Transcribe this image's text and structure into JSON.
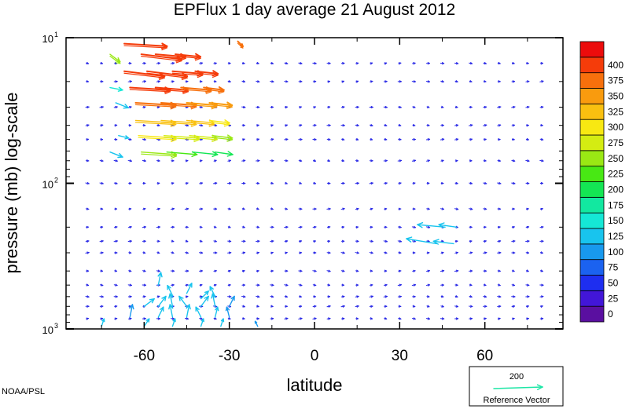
{
  "chart_data": {
    "type": "vector-field",
    "title": "EPFlux  1 day average  21 August    2012",
    "xlabel": "latitude",
    "ylabel": "pressure (mb)  log-scale",
    "x_ticks": [
      -60,
      -30,
      0,
      30,
      60
    ],
    "xlim": [
      -87.5,
      87.5
    ],
    "y_scale": "log",
    "ylim": [
      1000,
      10
    ],
    "y_ticks": [
      {
        "value": 10,
        "base": "10",
        "exp": "1"
      },
      {
        "value": 100,
        "base": "10",
        "exp": "2"
      },
      {
        "value": 1000,
        "base": "10",
        "exp": "3"
      }
    ],
    "colorbar": {
      "levels": [
        "0",
        "25",
        "50",
        "75",
        "100",
        "125",
        "150",
        "175",
        "200",
        "225",
        "250",
        "275",
        "300",
        "325",
        "350",
        "375",
        "400"
      ],
      "colors": [
        "#5a0fa0",
        "#4216d8",
        "#1e2ef0",
        "#1b62f0",
        "#1899ee",
        "#18c4ee",
        "#15e8d6",
        "#12e8a0",
        "#14e654",
        "#48e814",
        "#9ae814",
        "#d4ec12",
        "#f8e812",
        "#f9c010",
        "#f99b0e",
        "#f7700c",
        "#f53c0a",
        "#ec0c0c"
      ]
    },
    "reference_vector": {
      "value": "200",
      "label": "Reference Vector",
      "color": "#1ee6a6"
    },
    "vectors": [
      {
        "lon": -67,
        "p": 11,
        "dx": 17,
        "dy": 1,
        "mag": 420
      },
      {
        "lon": -61,
        "p": 13,
        "dx": 16,
        "dy": 2,
        "mag": 410
      },
      {
        "lon": -56,
        "p": 13,
        "dx": 12,
        "dy": 1,
        "mag": 405
      },
      {
        "lon": -49,
        "p": 13,
        "dx": 10,
        "dy": 1,
        "mag": 400
      },
      {
        "lon": -67,
        "p": 17,
        "dx": 16,
        "dy": 2,
        "mag": 415
      },
      {
        "lon": -59,
        "p": 17,
        "dx": 16,
        "dy": 2,
        "mag": 410
      },
      {
        "lon": -50,
        "p": 17,
        "dx": 12,
        "dy": 1,
        "mag": 405
      },
      {
        "lon": -42,
        "p": 17,
        "dx": 9,
        "dy": 1,
        "mag": 400
      },
      {
        "lon": -65,
        "p": 22,
        "dx": 16,
        "dy": 1,
        "mag": 405
      },
      {
        "lon": -56,
        "p": 22,
        "dx": 13,
        "dy": 1,
        "mag": 400
      },
      {
        "lon": -47,
        "p": 22,
        "dx": 12,
        "dy": 1,
        "mag": 395
      },
      {
        "lon": -39,
        "p": 22,
        "dx": 8,
        "dy": 1,
        "mag": 390
      },
      {
        "lon": -63,
        "p": 28,
        "dx": 16,
        "dy": 1,
        "mag": 390
      },
      {
        "lon": -54,
        "p": 28,
        "dx": 14,
        "dy": 1,
        "mag": 380
      },
      {
        "lon": -45,
        "p": 28,
        "dx": 12,
        "dy": 1,
        "mag": 370
      },
      {
        "lon": -37,
        "p": 28,
        "dx": 9,
        "dy": 1,
        "mag": 360
      },
      {
        "lon": -63,
        "p": 37,
        "dx": 16,
        "dy": 1,
        "mag": 340
      },
      {
        "lon": -54,
        "p": 37,
        "dx": 14,
        "dy": 1,
        "mag": 335
      },
      {
        "lon": -45,
        "p": 37,
        "dx": 11,
        "dy": 1,
        "mag": 325
      },
      {
        "lon": -37,
        "p": 37,
        "dx": 8,
        "dy": 1,
        "mag": 310
      },
      {
        "lon": -62,
        "p": 47,
        "dx": 15,
        "dy": 1,
        "mag": 300
      },
      {
        "lon": -53,
        "p": 47,
        "dx": 14,
        "dy": 1,
        "mag": 290
      },
      {
        "lon": -44,
        "p": 47,
        "dx": 11,
        "dy": 1,
        "mag": 275
      },
      {
        "lon": -36,
        "p": 47,
        "dx": 8,
        "dy": 1,
        "mag": 255
      },
      {
        "lon": -61,
        "p": 61,
        "dx": 14,
        "dy": 1,
        "mag": 260
      },
      {
        "lon": -52,
        "p": 61,
        "dx": 12,
        "dy": 1,
        "mag": 240
      },
      {
        "lon": -43,
        "p": 61,
        "dx": 10,
        "dy": 1,
        "mag": 220
      },
      {
        "lon": -35,
        "p": 61,
        "dx": 7,
        "dy": 1,
        "mag": 200
      },
      {
        "lon": -72,
        "p": 13,
        "dx": 4,
        "dy": 3,
        "mag": 250
      },
      {
        "lon": -72,
        "p": 22,
        "dx": 5,
        "dy": 1,
        "mag": 150
      },
      {
        "lon": -70,
        "p": 28,
        "dx": 5,
        "dy": 2,
        "mag": 140
      },
      {
        "lon": -72,
        "p": 61,
        "dx": 5,
        "dy": 2,
        "mag": 140
      },
      {
        "lon": -69,
        "p": 47,
        "dx": 4,
        "dy": 1,
        "mag": 130
      },
      {
        "lon": -27,
        "p": 10.6,
        "dx": 2,
        "dy": 2,
        "mag": 395
      },
      {
        "lon": 46,
        "p": 200,
        "dx": -11,
        "dy": -1,
        "mag": 140
      },
      {
        "lon": 50,
        "p": 200,
        "dx": -7,
        "dy": -1,
        "mag": 130
      },
      {
        "lon": 43,
        "p": 260,
        "dx": -12,
        "dy": -2,
        "mag": 140
      },
      {
        "lon": 49,
        "p": 260,
        "dx": -8,
        "dy": -1,
        "mag": 130
      },
      {
        "lon": -55,
        "p": 500,
        "dx": 1,
        "dy": -5,
        "mag": 130
      },
      {
        "lon": -50,
        "p": 590,
        "dx": -2,
        "dy": -4,
        "mag": 140
      },
      {
        "lon": -45,
        "p": 570,
        "dx": 2,
        "dy": -4,
        "mag": 130
      },
      {
        "lon": -40,
        "p": 620,
        "dx": 3,
        "dy": -3,
        "mag": 140
      },
      {
        "lon": -35,
        "p": 600,
        "dx": -2,
        "dy": -4,
        "mag": 130
      },
      {
        "lon": -60,
        "p": 700,
        "dx": 4,
        "dy": -3,
        "mag": 140
      },
      {
        "lon": -55,
        "p": 700,
        "dx": 3,
        "dy": -4,
        "mag": 140
      },
      {
        "lon": -50,
        "p": 700,
        "dx": -1,
        "dy": -5,
        "mag": 130
      },
      {
        "lon": -45,
        "p": 700,
        "dx": -3,
        "dy": -4,
        "mag": 140
      },
      {
        "lon": -40,
        "p": 700,
        "dx": 3,
        "dy": -4,
        "mag": 130
      },
      {
        "lon": -35,
        "p": 700,
        "dx": -1,
        "dy": -5,
        "mag": 140
      },
      {
        "lon": -30,
        "p": 700,
        "dx": 2,
        "dy": -4,
        "mag": 120
      },
      {
        "lon": -65,
        "p": 830,
        "dx": 1,
        "dy": -5,
        "mag": 120
      },
      {
        "lon": -55,
        "p": 830,
        "dx": 2,
        "dy": -4,
        "mag": 140
      },
      {
        "lon": -50,
        "p": 830,
        "dx": -1,
        "dy": -5,
        "mag": 130
      },
      {
        "lon": -45,
        "p": 830,
        "dx": 1,
        "dy": -5,
        "mag": 140
      },
      {
        "lon": -40,
        "p": 830,
        "dx": -2,
        "dy": -4,
        "mag": 130
      },
      {
        "lon": -35,
        "p": 830,
        "dx": 1,
        "dy": -4,
        "mag": 130
      },
      {
        "lon": -30,
        "p": 830,
        "dx": -1,
        "dy": -4,
        "mag": 120
      },
      {
        "lon": -75,
        "p": 960,
        "dx": 1,
        "dy": -3,
        "mag": 130
      },
      {
        "lon": -60,
        "p": 960,
        "dx": 2,
        "dy": -3,
        "mag": 140
      },
      {
        "lon": -50,
        "p": 960,
        "dx": 1,
        "dy": -3,
        "mag": 140
      },
      {
        "lon": -40,
        "p": 960,
        "dx": 1,
        "dy": -3,
        "mag": 140
      },
      {
        "lon": -33,
        "p": 960,
        "dx": 1,
        "dy": -3,
        "mag": 130
      },
      {
        "lon": -20,
        "p": 960,
        "dx": -1,
        "dy": -2,
        "mag": 110
      }
    ],
    "colored_exclusions": [
      [
        -67,
        11
      ],
      [
        -61,
        13
      ],
      [
        -56,
        13
      ],
      [
        -49,
        13
      ],
      [
        -67,
        17
      ],
      [
        -59,
        17
      ],
      [
        -50,
        17
      ],
      [
        -42,
        17
      ],
      [
        -65,
        22
      ],
      [
        -56,
        22
      ],
      [
        -47,
        22
      ],
      [
        -39,
        22
      ],
      [
        -63,
        28
      ],
      [
        -54,
        28
      ],
      [
        -45,
        28
      ],
      [
        -37,
        28
      ],
      [
        -63,
        37
      ],
      [
        -54,
        37
      ],
      [
        -45,
        37
      ],
      [
        -37,
        37
      ],
      [
        -62,
        47
      ],
      [
        -53,
        47
      ],
      [
        -44,
        47
      ],
      [
        -36,
        47
      ],
      [
        -61,
        61
      ],
      [
        -52,
        61
      ],
      [
        -43,
        61
      ],
      [
        -35,
        61
      ]
    ]
  },
  "credit": "NOAA/PSL"
}
